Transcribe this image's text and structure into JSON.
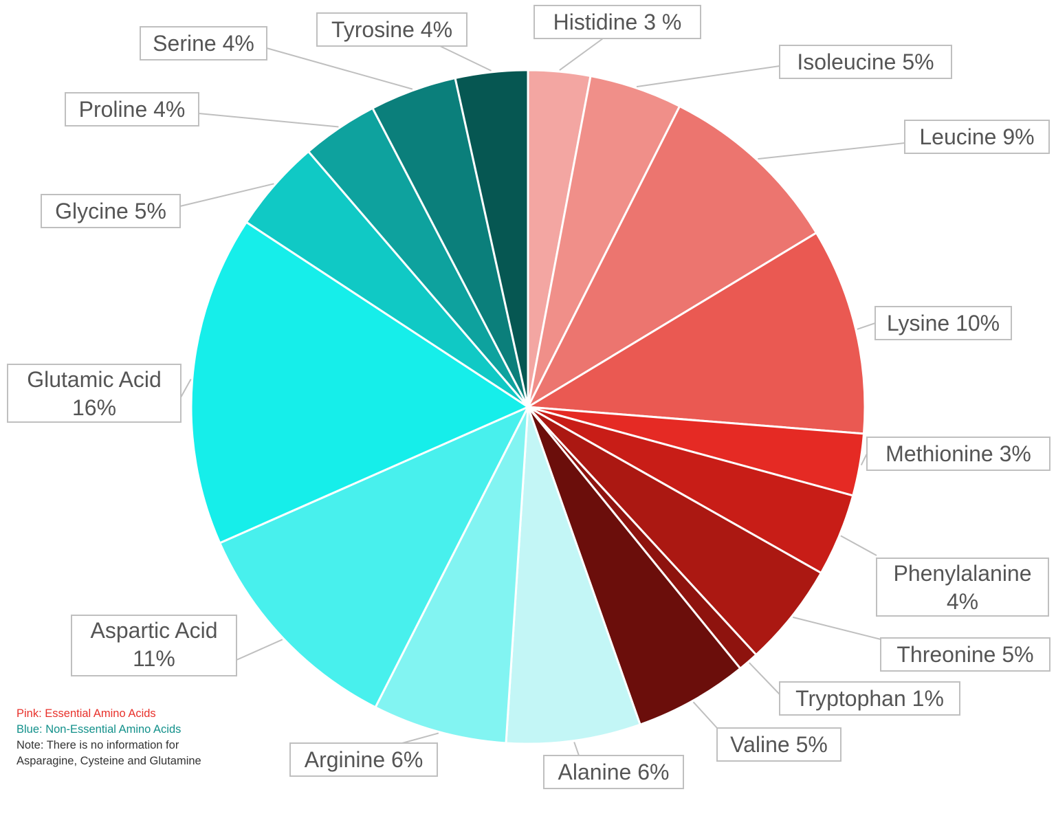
{
  "chart_data": {
    "type": "pie",
    "title": "",
    "slices": [
      {
        "label": "Histidine 3 %",
        "value": 3,
        "color": "#f3a6a2"
      },
      {
        "label": "Isoleucine 5%",
        "value": 4.5,
        "color": "#f08f89"
      },
      {
        "label": "Leucine 9%",
        "value": 9,
        "color": "#ec756f"
      },
      {
        "label": "Lysine 10%",
        "value": 10,
        "color": "#ea5952"
      },
      {
        "label": "Methionine 3%",
        "value": 3,
        "color": "#e52a24"
      },
      {
        "label": "Phenylalanine 4%",
        "value": 4,
        "color": "#c81d17"
      },
      {
        "label": "Threonine 5%",
        "value": 5,
        "color": "#ab1812"
      },
      {
        "label": "Tryptophan 1%",
        "value": 1,
        "color": "#8e130e"
      },
      {
        "label": "Valine 5%",
        "value": 5.5,
        "color": "#6b0e0b"
      },
      {
        "label": "Alanine 6%",
        "value": 6.5,
        "color": "#c3f6f6"
      },
      {
        "label": "Arginine 6%",
        "value": 6.5,
        "color": "#82f4f2"
      },
      {
        "label": "Aspartic Acid 11%",
        "value": 11,
        "color": "#48f0ed"
      },
      {
        "label": "Glutamic Acid 16%",
        "value": 16,
        "color": "#16eeea"
      },
      {
        "label": "Glycine 5%",
        "value": 4.5,
        "color": "#10c9c5"
      },
      {
        "label": "Proline 4%",
        "value": 3.7,
        "color": "#0ea29e"
      },
      {
        "label": "Serine 4%",
        "value": 4.2,
        "color": "#0b7f7b"
      },
      {
        "label": "Tyrosine 4%",
        "value": 3.5,
        "color": "#065752"
      }
    ]
  },
  "legend_note": {
    "pink_line": "Pink: Essential Amino Acids",
    "blue_line": "Blue: Non-Essential Amino Acids",
    "note_line": "Note: There is no information for Asparagine, Cysteine and Glutamine",
    "pink_color": "#e8302a",
    "blue_color": "#12908a"
  }
}
